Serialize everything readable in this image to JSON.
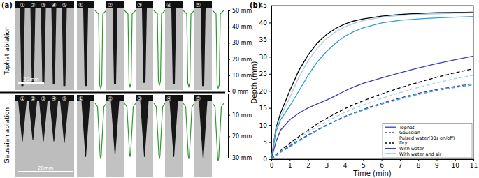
{
  "figure_a": {
    "label": "(a)",
    "hole_labels": [
      "①",
      "②",
      "③",
      "④",
      "⑤"
    ],
    "rows": [
      {
        "title": "Tophat ablation",
        "scale_bar": {
          "value": 20,
          "label": "20mm"
        },
        "lim": [
          0,
          50
        ],
        "ticks": [
          {
            "value": 50,
            "label": "50 mm"
          },
          {
            "value": 40,
            "label": "40 mm"
          },
          {
            "value": 30,
            "label": "30 mm"
          },
          {
            "value": 20,
            "label": "20 mm"
          },
          {
            "value": 10,
            "label": "10 mm"
          },
          {
            "value": 0,
            "label": "0 mm"
          }
        ],
        "depths": [
          48,
          47,
          46,
          47,
          48
        ]
      },
      {
        "title": "Gaussian ablation",
        "scale_bar": {
          "value": 20,
          "label": "20mm"
        },
        "lim": [
          0,
          30
        ],
        "ticks": [
          {
            "value": 10,
            "label": "10 mm"
          },
          {
            "value": 20,
            "label": "20 mm"
          },
          {
            "value": 30,
            "label": "30 mm"
          }
        ],
        "depths": [
          26,
          25,
          26,
          26,
          27
        ]
      }
    ]
  },
  "chart_data": {
    "type": "line",
    "title": "(b)",
    "x_label": "Time (min)",
    "y_label": "Depth (mm)",
    "xlim": [
      0,
      11
    ],
    "xticks": [
      0,
      1,
      2,
      3,
      4,
      5,
      6,
      7,
      8,
      9,
      10,
      11
    ],
    "ylim": [
      0,
      45
    ],
    "yticks": [
      0,
      5,
      10,
      15,
      20,
      25,
      30,
      35,
      40,
      45
    ],
    "legend": "lower right",
    "legend_entries": [
      {
        "name": "Tophat",
        "color": "#3d3db5",
        "line_style": "solid"
      },
      {
        "name": "Gaussian",
        "color": "#3d3db5",
        "line_style": "dashed"
      },
      {
        "name": "Pulsed water(30s on/off)",
        "color": "#a9cde9",
        "line_style": "dashed"
      },
      {
        "name": "Dry",
        "color": "#000000",
        "line_style": "dashed"
      },
      {
        "name": "With water",
        "color": "#3d3db5",
        "line_style": "solid"
      },
      {
        "name": "With water and air",
        "color": "#2e9fd9",
        "line_style": "solid"
      }
    ],
    "x": [
      0,
      0.25,
      0.5,
      1,
      1.5,
      2,
      2.5,
      3,
      3.5,
      4,
      4.5,
      5,
      6,
      7,
      8,
      9,
      10,
      11
    ],
    "series": [
      {
        "color": "#000000",
        "line_style": "solid",
        "values": [
          0,
          9,
          13.5,
          20,
          26,
          30.5,
          34,
          36.5,
          38.3,
          39.6,
          40.5,
          41.1,
          41.9,
          42.4,
          42.7,
          42.9,
          43,
          43.1
        ]
      },
      {
        "color": "#a9cde9",
        "line_style": "solid",
        "values": [
          0,
          8.5,
          12.5,
          18,
          24,
          28.8,
          32.5,
          35.3,
          37.3,
          38.8,
          39.8,
          40.6,
          41.6,
          42.1,
          42.4,
          42.6,
          42.8,
          42.9
        ]
      },
      {
        "color": "#2e9fd9",
        "line_style": "solid",
        "values": [
          0,
          8,
          11.5,
          15.5,
          20,
          24.5,
          28.5,
          31.5,
          34,
          36,
          37.4,
          38.5,
          39.9,
          40.7,
          41.1,
          41.4,
          41.6,
          41.8
        ]
      },
      {
        "color": "#3d3db5",
        "line_style": "solid",
        "values": [
          0,
          5,
          8.5,
          11.5,
          13.5,
          15,
          16.2,
          17.3,
          18.6,
          20,
          21.2,
          22.2,
          23.8,
          25.3,
          26.7,
          28,
          29.1,
          30.2
        ]
      },
      {
        "color": "#000000",
        "line_style": "dashed",
        "values": [
          0,
          1.3,
          2.5,
          4.6,
          6.6,
          8.5,
          10.3,
          11.9,
          13.4,
          14.8,
          16,
          17.1,
          19.1,
          20.9,
          22.5,
          24,
          25.3,
          26.5
        ]
      },
      {
        "color": "#a9cde9",
        "line_style": "dashed",
        "values": [
          0,
          1.2,
          2.3,
          4.2,
          6.1,
          7.9,
          9.5,
          11,
          12.4,
          13.7,
          14.9,
          15.9,
          17.8,
          19.5,
          21,
          22.4,
          23.6,
          24.6
        ]
      },
      {
        "color": "#3d3db5",
        "line_style": "dashed",
        "values": [
          0,
          1.1,
          2.1,
          3.8,
          5.5,
          7.1,
          8.6,
          10,
          11.3,
          12.5,
          13.6,
          14.6,
          16.4,
          17.9,
          19.3,
          20.4,
          21.3,
          22.1
        ]
      },
      {
        "color": "#2e9fd9",
        "line_style": "dashed",
        "values": [
          0,
          1,
          2,
          3.6,
          5.3,
          6.9,
          8.4,
          9.8,
          11.1,
          12.3,
          13.4,
          14.4,
          16.1,
          17.6,
          19,
          20.1,
          21,
          21.8
        ]
      }
    ]
  }
}
